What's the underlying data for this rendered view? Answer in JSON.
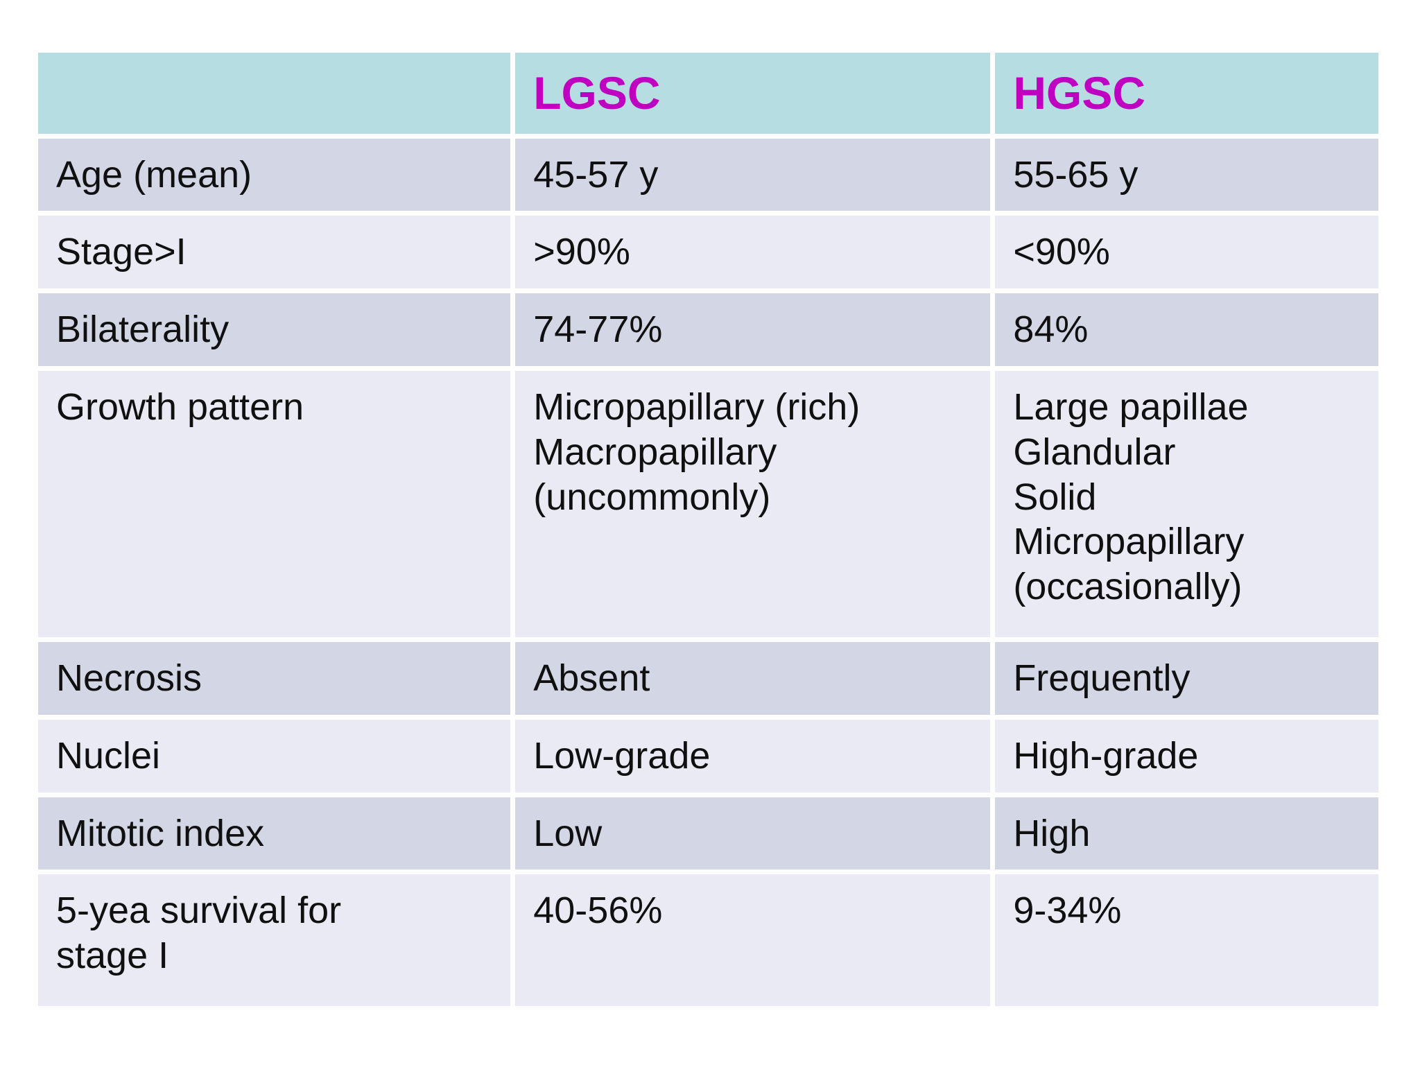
{
  "theme": {
    "page_bg": "#ffffff",
    "header_bg": "#b5dde2",
    "row_odd_bg": "#d2d6e5",
    "row_even_bg": "#e9eaf3",
    "header_text": "#c000c0",
    "body_text": "#101010",
    "grid_gap_color": "#ffffff"
  },
  "table": {
    "column_headers": [
      "",
      "LGSC",
      "HGSC"
    ],
    "rows": [
      {
        "label": "Age (mean)",
        "lgsc": "45-57 y",
        "hgsc": "55-65 y"
      },
      {
        "label": "Stage>I",
        "lgsc": ">90%",
        "hgsc": "<90%"
      },
      {
        "label": "Bilaterality",
        "lgsc": "74-77%",
        "hgsc": "84%"
      },
      {
        "label": "Growth pattern",
        "lgsc": "Micropapillary (rich)\nMacropapillary\n(uncommonly)",
        "hgsc": "Large papillae\nGlandular\nSolid\nMicropapillary\n(occasionally)"
      },
      {
        "label": "Necrosis",
        "lgsc": "Absent",
        "hgsc": "Frequently"
      },
      {
        "label": "Nuclei",
        "lgsc": "Low-grade",
        "hgsc": "High-grade"
      },
      {
        "label": "Mitotic index",
        "lgsc": "Low",
        "hgsc": "High"
      },
      {
        "label": "5-yea survival for\nstage I",
        "lgsc": "40-56%",
        "hgsc": "9-34%"
      }
    ]
  }
}
